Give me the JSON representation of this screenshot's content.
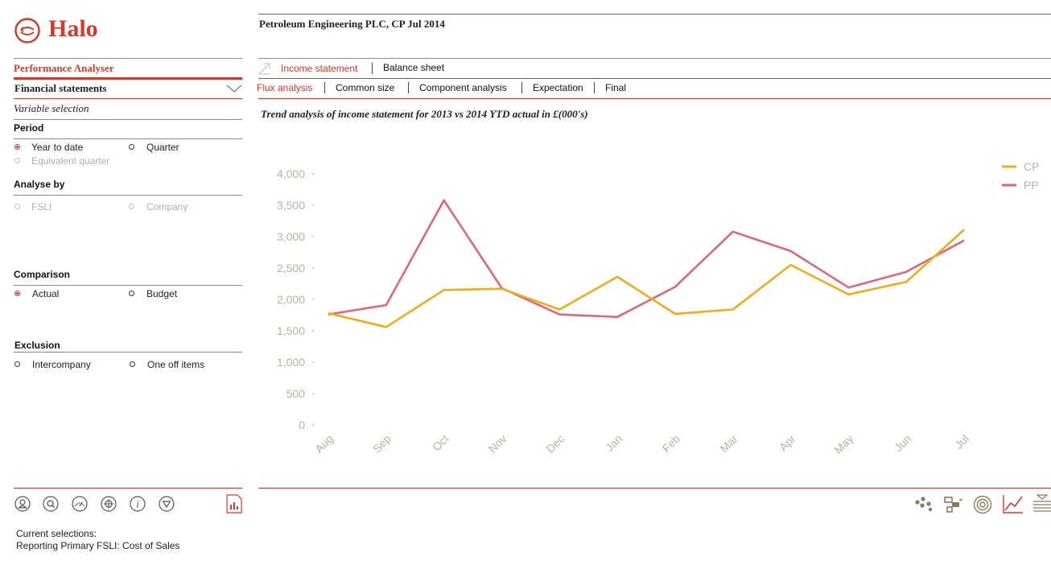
{
  "brand": {
    "name": "Halo"
  },
  "header": {
    "title": "Petroleum Engineering PLC, CP Jul 2014"
  },
  "sidebar": {
    "app_title": "Performance Analyser",
    "section": "Financial statements",
    "subsection": "Variable selection",
    "period": {
      "title": "Period",
      "options": [
        {
          "label": "Year to date",
          "selected": true,
          "enabled": true
        },
        {
          "label": "Quarter",
          "selected": false,
          "enabled": true
        },
        {
          "label": "Equivalent quarter",
          "selected": false,
          "enabled": false
        }
      ]
    },
    "analyse_by": {
      "title": "Analyse by",
      "options": [
        {
          "label": "FSLI",
          "selected": false,
          "enabled": false
        },
        {
          "label": "Company",
          "selected": false,
          "enabled": false
        }
      ]
    },
    "comparison": {
      "title": "Comparison",
      "options": [
        {
          "label": "Actual",
          "selected": true,
          "enabled": true
        },
        {
          "label": "Budget",
          "selected": false,
          "enabled": true
        }
      ]
    },
    "exclusion": {
      "title": "Exclusion",
      "options": [
        {
          "label": "Intercompany",
          "selected": false,
          "enabled": true
        },
        {
          "label": "One off items",
          "selected": false,
          "enabled": true
        }
      ]
    },
    "bottom_icons": [
      "person-icon",
      "search-icon",
      "gauge-icon",
      "target-icon",
      "info-icon",
      "dropdown-triangle-icon"
    ],
    "report_icon": "pdf-report-icon",
    "current_selections_label": "Current selections:",
    "current_selections_value": "Reporting Primary FSLI: Cost of Sales"
  },
  "tabs_row1": [
    {
      "label": "Income statement",
      "active": true
    },
    {
      "label": "Balance sheet",
      "active": false
    }
  ],
  "tabs_row2": [
    {
      "label": "Flux analysis",
      "active": true
    },
    {
      "label": "Common size",
      "active": false
    },
    {
      "label": "Component analysis",
      "active": false
    },
    {
      "label": "Expectation",
      "active": false
    },
    {
      "label": "Final",
      "active": false
    }
  ],
  "chart_title": "Trend analysis of income statement for 2013 vs 2014 YTD actual in £(000's)",
  "chart_data": {
    "type": "line",
    "x": [
      "Aug",
      "Sep",
      "Oct",
      "Nov",
      "Dec",
      "Jan",
      "Feb",
      "Mar",
      "Apr",
      "May",
      "Jun",
      "Jul"
    ],
    "series": [
      {
        "name": "CP",
        "color": "#f0ac1b",
        "values": [
          1780,
          1560,
          2150,
          2170,
          1840,
          2360,
          1770,
          1840,
          2550,
          2080,
          2280,
          3110
        ]
      },
      {
        "name": "PP",
        "color": "#e0667a",
        "values": [
          1760,
          1910,
          3580,
          2180,
          1760,
          1720,
          2200,
          3080,
          2770,
          2190,
          2440,
          2940
        ]
      }
    ],
    "yticks": [
      "4,000",
      "3,500",
      "3,000",
      "2,500",
      "2,000",
      "1,500",
      "1,000",
      "500",
      "0"
    ],
    "ylim": [
      0,
      4000
    ],
    "legend": "top-right",
    "grid": false
  },
  "chart_toolbar_icons": [
    "scatter-chart-icon",
    "waterfall-chart-icon",
    "donut-chart-icon",
    "line-chart-icon",
    "table-list-icon"
  ]
}
